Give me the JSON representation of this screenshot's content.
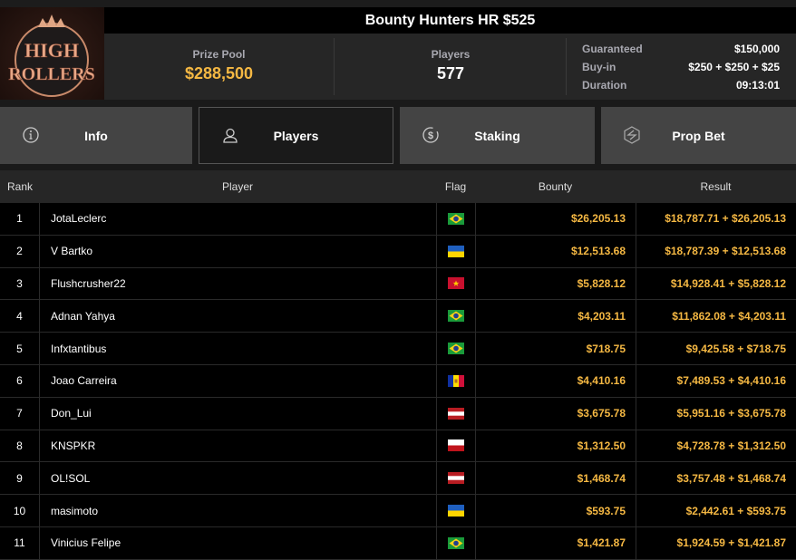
{
  "logo": {
    "text": "HIGH ROLLERS"
  },
  "title": "Bounty Hunters HR $525",
  "stats": {
    "prize_pool": {
      "label": "Prize Pool",
      "value": "$288,500"
    },
    "players": {
      "label": "Players",
      "value": "577"
    },
    "info": [
      {
        "label": "Guaranteed",
        "value": "$150,000"
      },
      {
        "label": "Buy-in",
        "value": "$250 + $250 + $25"
      },
      {
        "label": "Duration",
        "value": "09:13:01"
      }
    ]
  },
  "tabs": [
    {
      "label": "Info",
      "icon": "info-icon",
      "active": false
    },
    {
      "label": "Players",
      "icon": "user-icon",
      "active": true
    },
    {
      "label": "Staking",
      "icon": "dollar-coin-icon",
      "active": false
    },
    {
      "label": "Prop Bet",
      "icon": "lightning-hexagon-icon",
      "active": false
    }
  ],
  "table": {
    "headers": {
      "rank": "Rank",
      "player": "Player",
      "flag": "Flag",
      "bounty": "Bounty",
      "result": "Result"
    },
    "rows": [
      {
        "rank": "1",
        "player": "JotaLeclerc",
        "flag": "brazil",
        "bounty": "$26,205.13",
        "result": "$18,787.71 + $26,205.13"
      },
      {
        "rank": "2",
        "player": "V Bartko",
        "flag": "ukraine",
        "bounty": "$12,513.68",
        "result": "$18,787.39 + $12,513.68"
      },
      {
        "rank": "3",
        "player": "Flushcrusher22",
        "flag": "vietnam",
        "bounty": "$5,828.12",
        "result": "$14,928.41 + $5,828.12"
      },
      {
        "rank": "4",
        "player": "Adnan Yahya",
        "flag": "brazil",
        "bounty": "$4,203.11",
        "result": "$11,862.08 + $4,203.11"
      },
      {
        "rank": "5",
        "player": "Infxtantibus",
        "flag": "brazil",
        "bounty": "$718.75",
        "result": "$9,425.58 + $718.75"
      },
      {
        "rank": "6",
        "player": "Joao Carreira",
        "flag": "andorra",
        "bounty": "$4,410.16",
        "result": "$7,489.53 + $4,410.16"
      },
      {
        "rank": "7",
        "player": "Don_Lui",
        "flag": "austria",
        "bounty": "$3,675.78",
        "result": "$5,951.16 + $3,675.78"
      },
      {
        "rank": "8",
        "player": "KNSPKR",
        "flag": "poland",
        "bounty": "$1,312.50",
        "result": "$4,728.78 + $1,312.50"
      },
      {
        "rank": "9",
        "player": "OL!SOL",
        "flag": "austria",
        "bounty": "$1,468.74",
        "result": "$3,757.48 + $1,468.74"
      },
      {
        "rank": "10",
        "player": "masimoto",
        "flag": "ukraine",
        "bounty": "$593.75",
        "result": "$2,442.61 + $593.75"
      },
      {
        "rank": "11",
        "player": "Vinicius Felipe",
        "flag": "brazil",
        "bounty": "$1,421.87",
        "result": "$1,924.59 + $1,421.87"
      }
    ]
  },
  "colors": {
    "accent": "#f5b843",
    "tab_bg": "#444444",
    "active_tab_bg": "#1a1a1a"
  }
}
